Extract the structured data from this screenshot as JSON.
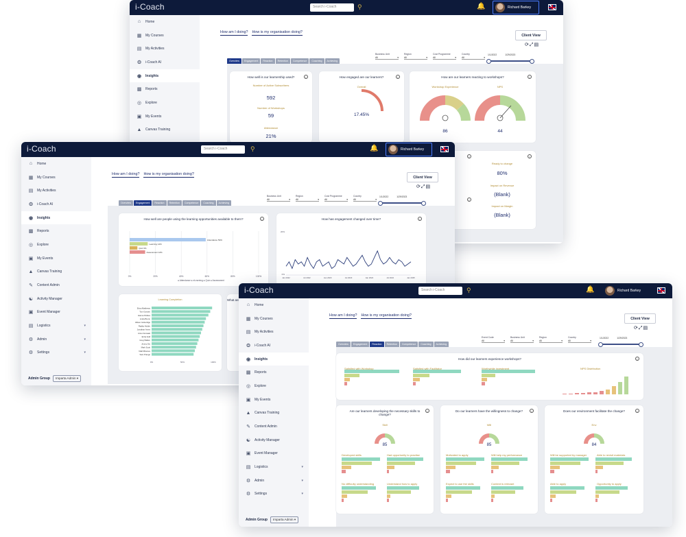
{
  "app": {
    "logo": "i-Coach"
  },
  "topbar": {
    "search_placeholder": "Search i-Coach",
    "user_name": "Richard Barkey"
  },
  "sidebar": {
    "items": [
      "Home",
      "My Courses",
      "My Activities",
      "i-Coach AI",
      "Insights",
      "Reports",
      "Explore",
      "My Events",
      "Canvas Training",
      "Content Admin",
      "Activity Manager",
      "Event Manager",
      "Logistics",
      "Admin",
      "Settings"
    ],
    "admin_group_label": "Admin Group",
    "admin_group_value": "Imparta Admin"
  },
  "header": {
    "q1": "How am I doing?",
    "q2": "How is my organisation doing?",
    "client_view": "Client View"
  },
  "tabs": [
    "Overview",
    "Engagement",
    "Reaction",
    "Retention",
    "Competence",
    "Coaching",
    "Achieving"
  ],
  "filters": {
    "business_unit": "Business Unit",
    "region": "Region",
    "cost_programme": "Cost Programme",
    "country": "Country",
    "event_code": "Event Code",
    "all": "All",
    "date_from": "1/1/2022",
    "date_to": "1/29/2023"
  },
  "overview": {
    "card1_title": "How well is our learnership used?",
    "active_label": "Number of Active Subscribers",
    "active_value": "592",
    "workshops_label": "Number of Workshops",
    "workshops_value": "59",
    "attendance_label": "Attendance",
    "attendance_value": "21%",
    "card2_title": "How engaged are our learners?",
    "overall_label": "Overall",
    "overall_value": "17.45%",
    "card3_title": "How are our learners reacting to workshops?",
    "workshop_exp_label": "Workshop Experience",
    "workshop_exp_value": "86",
    "nps_label": "NPS",
    "nps_value": "44",
    "ready_label": "Ready to change",
    "ready_value": "80%",
    "revenue_label": "Impact on Revenue",
    "revenue_value": "(Blank)",
    "margin_label": "Impact on Margin",
    "margin_value": "(Blank)"
  },
  "engagement": {
    "card1_title": "How well are people using the learning opportunities available to them?",
    "bar_labels": [
      "Attendance 59%",
      "Learning 14%",
      "Quiz 6%",
      "Assessment 12%"
    ],
    "bar_values": [
      59,
      14,
      6,
      12
    ],
    "bar_colors": [
      "#a9c8ee",
      "#c7d98a",
      "#d9b25a",
      "#e58f8f"
    ],
    "x_ticks": [
      "0%",
      "20%",
      "40%",
      "60%",
      "80%",
      "100%"
    ],
    "legend": "● Attendance  ● eLearning  ● Quiz  ● Assessment",
    "card2_title": "How has engagement changed over time?",
    "line_y_top": "20%",
    "line_y_bottom": "0%",
    "line_x_ticks": [
      "Jan 2022",
      "Jul 2022",
      "Jan 2023",
      "Jul 2023",
      "Jan 2024",
      "Jul 2024",
      "Jan 2025"
    ],
    "line_values": [
      4,
      6,
      3,
      7,
      5,
      6,
      4,
      8,
      5,
      3,
      6,
      7,
      4,
      5,
      6,
      3,
      4,
      7,
      6,
      5,
      8,
      6,
      4,
      5,
      7,
      9,
      6,
      4,
      5,
      8,
      11,
      7,
      5,
      6,
      8,
      6,
      5,
      7,
      6,
      4,
      5,
      6
    ],
    "card3_title": "Learning Completion",
    "people": [
      "Erica Matthews",
      "Tom Gossen",
      "Hanna Pickles",
      "Linda Brenn",
      "Allison Gutteridge",
      "Radka Holder",
      "Jonathan Ames",
      "Anne Nemaad",
      "Emily Hall",
      "Greg Walker",
      "Jimmy Dix",
      "Mark Scott",
      "Niall Rhames",
      "Sam Prange"
    ],
    "people_values": [
      98,
      95,
      92,
      88,
      86,
      84,
      82,
      80,
      78,
      76,
      74,
      72,
      70,
      68
    ],
    "people_x_ticks": [
      "0%",
      "50%",
      "100%"
    ],
    "card4_title": "What are"
  },
  "reaction": {
    "card1_title": "How did our learners experience workshops?",
    "sub1": "Satisfied with Workshop",
    "sub2": "Satisfied with Facilitator",
    "sub3": "Worthwhile investment",
    "sub4": "NPS Distribution",
    "card2_title": "Are our learners developing the necessary skills to change?",
    "card2_gauge_label": "Skill",
    "card2_value": "85",
    "card3_title": "Do our learners have the willingness to change?",
    "card3_gauge_label": "Will",
    "card3_value": "85",
    "card4_title": "Does our environment facilitate the change?",
    "card4_gauge_label": "Env",
    "card4_value": "84",
    "c2a": "Developed skills",
    "c2b": "Had opportunity to practise",
    "c2c": "No difficulty understanding",
    "c2d": "Understand how to apply",
    "c3a": "Motivated to apply",
    "c3b": "Will help my performance",
    "c3c": "Expect to use the skills",
    "c3d": "Content is relevant",
    "c4a": "Will be supported by manager",
    "c4b": "Able to revisit materials",
    "c4c": "Able to apply",
    "c4d": "Opportunity to apply"
  }
}
